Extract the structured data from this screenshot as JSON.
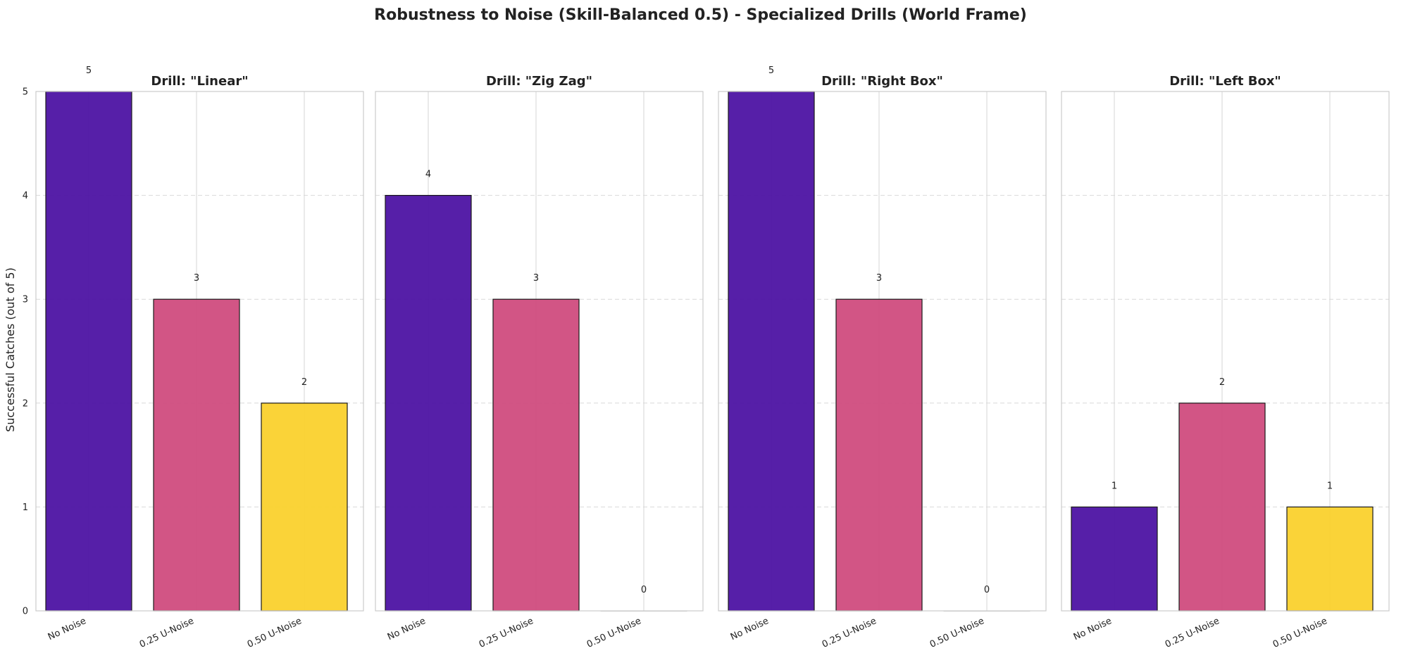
{
  "figure": {
    "suptitle": "Robustness to Noise (Skill-Balanced 0.5) - Specialized Drills (World Frame)"
  },
  "chart_data": [
    {
      "type": "bar",
      "title": "Drill: \"Linear\"",
      "categories": [
        "No Noise",
        "0.25 U-Noise",
        "0.50 U-Noise"
      ],
      "values": [
        5,
        3,
        2
      ],
      "ylabel": "Successful Catches (out of 5)",
      "ylim": [
        0,
        5
      ],
      "yticks": [
        "0",
        "1",
        "2",
        "3",
        "4",
        "5"
      ],
      "grid": true
    },
    {
      "type": "bar",
      "title": "Drill: \"Zig Zag\"",
      "categories": [
        "No Noise",
        "0.25 U-Noise",
        "0.50 U-Noise"
      ],
      "values": [
        4,
        3,
        0
      ],
      "ylim": [
        0,
        5
      ],
      "grid": true
    },
    {
      "type": "bar",
      "title": "Drill: \"Right Box\"",
      "categories": [
        "No Noise",
        "0.25 U-Noise",
        "0.50 U-Noise"
      ],
      "values": [
        5,
        3,
        0
      ],
      "ylim": [
        0,
        5
      ],
      "grid": true
    },
    {
      "type": "bar",
      "title": "Drill: \"Left Box\"",
      "categories": [
        "No Noise",
        "0.25 U-Noise",
        "0.50 U-Noise"
      ],
      "values": [
        1,
        2,
        1
      ],
      "ylim": [
        0,
        5
      ],
      "grid": true
    }
  ],
  "colors": {
    "No Noise": "#4b11a3",
    "0.25 U-Noise": "#cf4a7d",
    "0.50 U-Noise": "#fad02c"
  }
}
